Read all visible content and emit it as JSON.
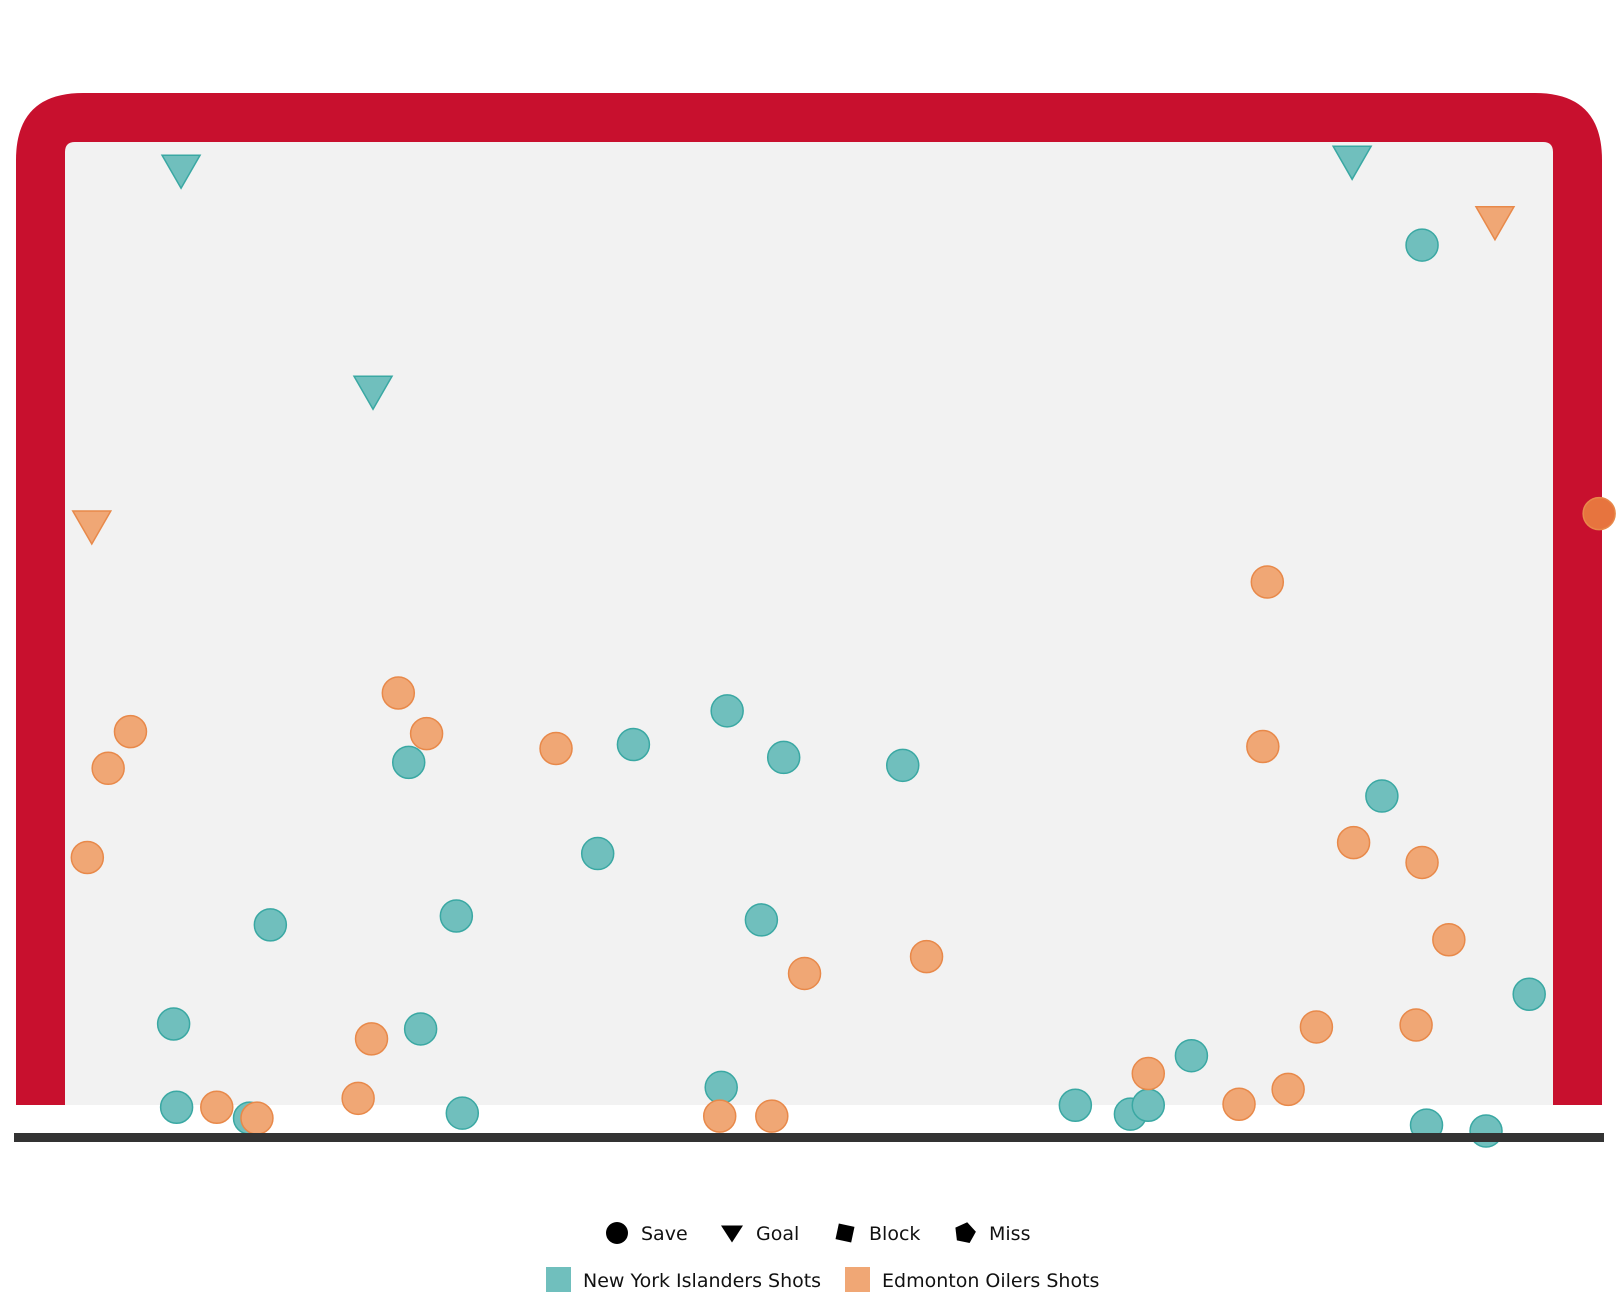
{
  "chart_data": {
    "type": "scatter",
    "title": "",
    "xlabel": "",
    "ylabel": "",
    "x_range": [
      0,
      100
    ],
    "y_range": [
      0,
      100
    ],
    "grid": false,
    "legend_position": "bottom-center",
    "colors": {
      "frame": "#c8102e",
      "ice": "#f2f2f2",
      "goal_line": "#333333",
      "teal": "#70bfbd",
      "teal_stroke": "#3aa8a3",
      "orange": "#f0a775",
      "orange_stroke": "#e8894a",
      "orange_dark": "#e7743e"
    },
    "legend": {
      "shot_types": [
        {
          "name": "Save",
          "icon": "circle"
        },
        {
          "name": "Goal",
          "icon": "triangle-down"
        },
        {
          "name": "Block",
          "icon": "square"
        },
        {
          "name": "Miss",
          "icon": "pentagon"
        }
      ],
      "teams": [
        {
          "name": "New York Islanders Shots",
          "color": "#70bfbd"
        },
        {
          "name": "Edmonton Oilers Shots",
          "color": "#f0a775"
        }
      ]
    },
    "series": [
      {
        "name": "New York Islanders Shots",
        "points": [
          {
            "x": 7.8,
            "y": 97.0,
            "type": "Goal"
          },
          {
            "x": 20.7,
            "y": 74.7,
            "type": "Goal"
          },
          {
            "x": 86.5,
            "y": 97.9,
            "type": "Goal"
          },
          {
            "x": 91.2,
            "y": 89.6,
            "type": "Save"
          },
          {
            "x": 23.1,
            "y": 37.4,
            "type": "Save"
          },
          {
            "x": 38.2,
            "y": 39.2,
            "type": "Save"
          },
          {
            "x": 44.5,
            "y": 42.6,
            "type": "Save"
          },
          {
            "x": 48.3,
            "y": 37.9,
            "type": "Save"
          },
          {
            "x": 56.3,
            "y": 37.1,
            "type": "Save"
          },
          {
            "x": 88.5,
            "y": 34.0,
            "type": "Save"
          },
          {
            "x": 35.8,
            "y": 28.2,
            "type": "Save"
          },
          {
            "x": 13.8,
            "y": 21.0,
            "type": "Save"
          },
          {
            "x": 26.3,
            "y": 21.9,
            "type": "Save"
          },
          {
            "x": 46.8,
            "y": 21.5,
            "type": "Save"
          },
          {
            "x": 7.3,
            "y": 11.0,
            "type": "Save"
          },
          {
            "x": 23.9,
            "y": 10.5,
            "type": "Save"
          },
          {
            "x": 75.7,
            "y": 7.8,
            "type": "Save"
          },
          {
            "x": 98.4,
            "y": 14.0,
            "type": "Save"
          },
          {
            "x": 7.5,
            "y": 2.6,
            "type": "Save"
          },
          {
            "x": 12.4,
            "y": 1.5,
            "type": "Save"
          },
          {
            "x": 26.7,
            "y": 2.0,
            "type": "Save"
          },
          {
            "x": 44.1,
            "y": 4.6,
            "type": "Save"
          },
          {
            "x": 67.9,
            "y": 2.8,
            "type": "Save"
          },
          {
            "x": 71.6,
            "y": 1.9,
            "type": "Save"
          },
          {
            "x": 72.8,
            "y": 2.8,
            "type": "Save"
          },
          {
            "x": 91.5,
            "y": 0.8,
            "type": "Save"
          },
          {
            "x": 95.5,
            "y": 0.2,
            "type": "Save"
          }
        ]
      },
      {
        "name": "Edmonton Oilers Shots",
        "points": [
          {
            "x": 1.8,
            "y": 61.1,
            "type": "Goal"
          },
          {
            "x": 96.1,
            "y": 91.8,
            "type": "Goal"
          },
          {
            "x": 103.1,
            "y": 62.5,
            "type": "Save",
            "dark": true
          },
          {
            "x": 80.8,
            "y": 55.6,
            "type": "Save"
          },
          {
            "x": 22.4,
            "y": 44.4,
            "type": "Save"
          },
          {
            "x": 4.4,
            "y": 40.5,
            "type": "Save"
          },
          {
            "x": 2.9,
            "y": 36.8,
            "type": "Save"
          },
          {
            "x": 24.3,
            "y": 40.3,
            "type": "Save"
          },
          {
            "x": 33.0,
            "y": 38.8,
            "type": "Save"
          },
          {
            "x": 80.5,
            "y": 39.0,
            "type": "Save"
          },
          {
            "x": 1.5,
            "y": 27.8,
            "type": "Save"
          },
          {
            "x": 86.6,
            "y": 29.3,
            "type": "Save"
          },
          {
            "x": 91.2,
            "y": 27.3,
            "type": "Save"
          },
          {
            "x": 93.0,
            "y": 19.5,
            "type": "Save"
          },
          {
            "x": 57.9,
            "y": 17.8,
            "type": "Save"
          },
          {
            "x": 49.7,
            "y": 16.1,
            "type": "Save"
          },
          {
            "x": 20.6,
            "y": 9.5,
            "type": "Save"
          },
          {
            "x": 84.1,
            "y": 10.7,
            "type": "Save"
          },
          {
            "x": 90.8,
            "y": 10.9,
            "type": "Save"
          },
          {
            "x": 72.8,
            "y": 6.0,
            "type": "Save"
          },
          {
            "x": 19.7,
            "y": 3.5,
            "type": "Save"
          },
          {
            "x": 10.2,
            "y": 2.6,
            "type": "Save"
          },
          {
            "x": 12.9,
            "y": 1.5,
            "type": "Save"
          },
          {
            "x": 78.9,
            "y": 2.9,
            "type": "Save"
          },
          {
            "x": 82.2,
            "y": 4.4,
            "type": "Save"
          },
          {
            "x": 44.0,
            "y": 1.7,
            "type": "Save"
          },
          {
            "x": 47.5,
            "y": 1.7,
            "type": "Save"
          }
        ]
      }
    ]
  }
}
